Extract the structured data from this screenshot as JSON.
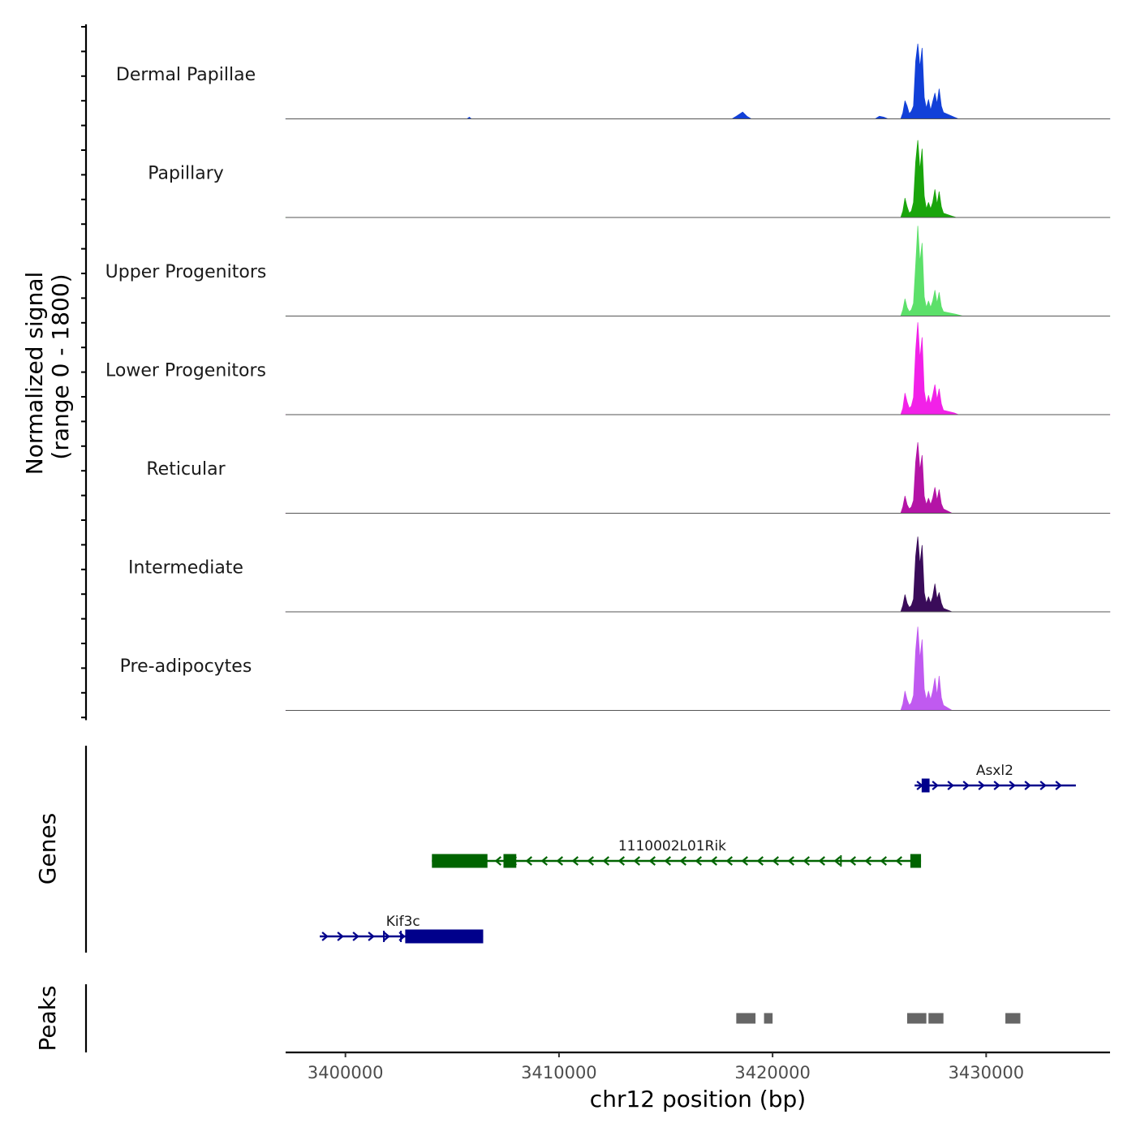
{
  "chart_data": {
    "type": "area",
    "title": "",
    "ylabel_line1": "Normalized signal",
    "ylabel_line2": "(range 0 - 1800)",
    "ylim": [
      0,
      1800
    ],
    "xlabel": "chr12 position (bp)",
    "xlim": [
      3397200,
      3435800
    ],
    "x_ticks": [
      3400000,
      3410000,
      3420000,
      3430000
    ],
    "x_tick_labels": [
      "3400000",
      "3410000",
      "3420000",
      "3430000"
    ],
    "genes_label": "Genes",
    "peaks_label": "Peaks",
    "tracks": [
      {
        "name": "Dermal Papillae",
        "color": "#1240d8",
        "points": [
          [
            3397200,
            0
          ],
          [
            3405700,
            0
          ],
          [
            3405800,
            40
          ],
          [
            3405900,
            0
          ],
          [
            3418100,
            0
          ],
          [
            3418300,
            60
          ],
          [
            3418600,
            160
          ],
          [
            3418800,
            60
          ],
          [
            3419000,
            0
          ],
          [
            3424300,
            0
          ],
          [
            3424800,
            0
          ],
          [
            3425000,
            60
          ],
          [
            3425200,
            40
          ],
          [
            3425400,
            0
          ],
          [
            3426000,
            0
          ],
          [
            3426100,
            140
          ],
          [
            3426200,
            420
          ],
          [
            3426300,
            300
          ],
          [
            3426400,
            120
          ],
          [
            3426500,
            180
          ],
          [
            3426600,
            300
          ],
          [
            3426700,
            1350
          ],
          [
            3426800,
            1750
          ],
          [
            3426900,
            1200
          ],
          [
            3427000,
            1650
          ],
          [
            3427100,
            500
          ],
          [
            3427200,
            250
          ],
          [
            3427300,
            450
          ],
          [
            3427400,
            200
          ],
          [
            3427500,
            400
          ],
          [
            3427600,
            600
          ],
          [
            3427700,
            350
          ],
          [
            3427800,
            700
          ],
          [
            3427900,
            300
          ],
          [
            3428000,
            150
          ],
          [
            3428500,
            40
          ],
          [
            3428700,
            0
          ],
          [
            3435800,
            0
          ]
        ]
      },
      {
        "name": "Papillary",
        "color": "#1aa50c",
        "points": [
          [
            3397200,
            0
          ],
          [
            3426000,
            0
          ],
          [
            3426100,
            150
          ],
          [
            3426200,
            450
          ],
          [
            3426300,
            250
          ],
          [
            3426400,
            100
          ],
          [
            3426500,
            150
          ],
          [
            3426600,
            350
          ],
          [
            3426700,
            1300
          ],
          [
            3426800,
            1800
          ],
          [
            3426900,
            1100
          ],
          [
            3427000,
            1600
          ],
          [
            3427100,
            500
          ],
          [
            3427200,
            200
          ],
          [
            3427300,
            350
          ],
          [
            3427400,
            200
          ],
          [
            3427500,
            350
          ],
          [
            3427600,
            650
          ],
          [
            3427700,
            300
          ],
          [
            3427800,
            600
          ],
          [
            3427900,
            250
          ],
          [
            3428000,
            100
          ],
          [
            3428400,
            30
          ],
          [
            3428600,
            0
          ],
          [
            3435800,
            0
          ]
        ]
      },
      {
        "name": "Upper Progenitors",
        "color": "#5ce06a",
        "points": [
          [
            3397200,
            0
          ],
          [
            3426000,
            0
          ],
          [
            3426100,
            150
          ],
          [
            3426200,
            400
          ],
          [
            3426300,
            200
          ],
          [
            3426400,
            100
          ],
          [
            3426500,
            150
          ],
          [
            3426600,
            300
          ],
          [
            3426700,
            1200
          ],
          [
            3426800,
            2100
          ],
          [
            3426900,
            1250
          ],
          [
            3427000,
            1700
          ],
          [
            3427100,
            450
          ],
          [
            3427200,
            200
          ],
          [
            3427300,
            350
          ],
          [
            3427400,
            200
          ],
          [
            3427500,
            350
          ],
          [
            3427600,
            600
          ],
          [
            3427700,
            300
          ],
          [
            3427800,
            550
          ],
          [
            3427900,
            220
          ],
          [
            3428000,
            100
          ],
          [
            3428600,
            40
          ],
          [
            3428900,
            0
          ],
          [
            3435800,
            0
          ]
        ]
      },
      {
        "name": "Lower Progenitors",
        "color": "#f221e8",
        "points": [
          [
            3397200,
            0
          ],
          [
            3426000,
            0
          ],
          [
            3426100,
            150
          ],
          [
            3426200,
            500
          ],
          [
            3426300,
            300
          ],
          [
            3426400,
            150
          ],
          [
            3426500,
            200
          ],
          [
            3426600,
            400
          ],
          [
            3426700,
            1500
          ],
          [
            3426800,
            2150
          ],
          [
            3426900,
            1300
          ],
          [
            3427000,
            1800
          ],
          [
            3427100,
            550
          ],
          [
            3427200,
            250
          ],
          [
            3427300,
            450
          ],
          [
            3427400,
            250
          ],
          [
            3427500,
            450
          ],
          [
            3427600,
            700
          ],
          [
            3427700,
            350
          ],
          [
            3427800,
            600
          ],
          [
            3427900,
            250
          ],
          [
            3428000,
            100
          ],
          [
            3428500,
            40
          ],
          [
            3428700,
            0
          ],
          [
            3435800,
            0
          ]
        ]
      },
      {
        "name": "Reticular",
        "color": "#b414a6",
        "points": [
          [
            3397200,
            0
          ],
          [
            3426000,
            0
          ],
          [
            3426100,
            150
          ],
          [
            3426200,
            400
          ],
          [
            3426300,
            200
          ],
          [
            3426400,
            100
          ],
          [
            3426500,
            150
          ],
          [
            3426600,
            300
          ],
          [
            3426700,
            1200
          ],
          [
            3426800,
            1650
          ],
          [
            3426900,
            1000
          ],
          [
            3427000,
            1350
          ],
          [
            3427100,
            400
          ],
          [
            3427200,
            200
          ],
          [
            3427300,
            350
          ],
          [
            3427400,
            200
          ],
          [
            3427500,
            350
          ],
          [
            3427600,
            600
          ],
          [
            3427700,
            300
          ],
          [
            3427800,
            550
          ],
          [
            3427900,
            220
          ],
          [
            3428000,
            100
          ],
          [
            3428400,
            0
          ],
          [
            3435800,
            0
          ]
        ]
      },
      {
        "name": "Intermediate",
        "color": "#3a0c5a",
        "points": [
          [
            3397200,
            0
          ],
          [
            3426000,
            0
          ],
          [
            3426100,
            150
          ],
          [
            3426200,
            400
          ],
          [
            3426300,
            200
          ],
          [
            3426400,
            100
          ],
          [
            3426500,
            150
          ],
          [
            3426600,
            300
          ],
          [
            3426700,
            1300
          ],
          [
            3426800,
            1750
          ],
          [
            3426900,
            1100
          ],
          [
            3427000,
            1550
          ],
          [
            3427100,
            450
          ],
          [
            3427200,
            200
          ],
          [
            3427300,
            350
          ],
          [
            3427400,
            200
          ],
          [
            3427500,
            350
          ],
          [
            3427600,
            650
          ],
          [
            3427700,
            300
          ],
          [
            3427800,
            450
          ],
          [
            3427900,
            200
          ],
          [
            3428000,
            80
          ],
          [
            3428400,
            0
          ],
          [
            3435800,
            0
          ]
        ]
      },
      {
        "name": "Pre-adipocytes",
        "color": "#c05af0",
        "points": [
          [
            3397200,
            0
          ],
          [
            3426000,
            0
          ],
          [
            3426100,
            150
          ],
          [
            3426200,
            450
          ],
          [
            3426300,
            250
          ],
          [
            3426400,
            120
          ],
          [
            3426500,
            180
          ],
          [
            3426600,
            350
          ],
          [
            3426700,
            1400
          ],
          [
            3426800,
            1950
          ],
          [
            3426900,
            1200
          ],
          [
            3427000,
            1650
          ],
          [
            3427100,
            500
          ],
          [
            3427200,
            250
          ],
          [
            3427300,
            450
          ],
          [
            3427400,
            250
          ],
          [
            3427500,
            450
          ],
          [
            3427600,
            750
          ],
          [
            3427700,
            350
          ],
          [
            3427800,
            800
          ],
          [
            3427900,
            300
          ],
          [
            3428000,
            120
          ],
          [
            3428400,
            0
          ],
          [
            3435800,
            0
          ]
        ]
      }
    ],
    "genes": [
      {
        "name": "Asxl2",
        "strand": "+",
        "color": "#00008b",
        "row": 0,
        "start": 3426650,
        "end": 3434200,
        "label_x": 3430400,
        "exons": [
          [
            3426980,
            3427350
          ]
        ]
      },
      {
        "name": "1110002L01Rik",
        "strand": "-",
        "color": "#006400",
        "row": 1,
        "start": 3404050,
        "end": 3426950,
        "label_x": 3415300,
        "exons": [
          [
            3404050,
            3406650
          ],
          [
            3407400,
            3408000
          ],
          [
            3426450,
            3426950
          ]
        ],
        "ticks": [
          3423200
        ]
      },
      {
        "name": "Kif3c",
        "strand": "+",
        "color": "#00008b",
        "row": 2,
        "start": 3398800,
        "end": 3406450,
        "label_x": 3402700,
        "exons": [
          [
            3402800,
            3406450
          ]
        ],
        "ticks": [
          3401800,
          3402600
        ]
      }
    ],
    "peaks": [
      [
        3418300,
        3419200
      ],
      [
        3419600,
        3420000
      ],
      [
        3426300,
        3427200
      ],
      [
        3427300,
        3428000
      ],
      [
        3430900,
        3431600
      ]
    ]
  }
}
